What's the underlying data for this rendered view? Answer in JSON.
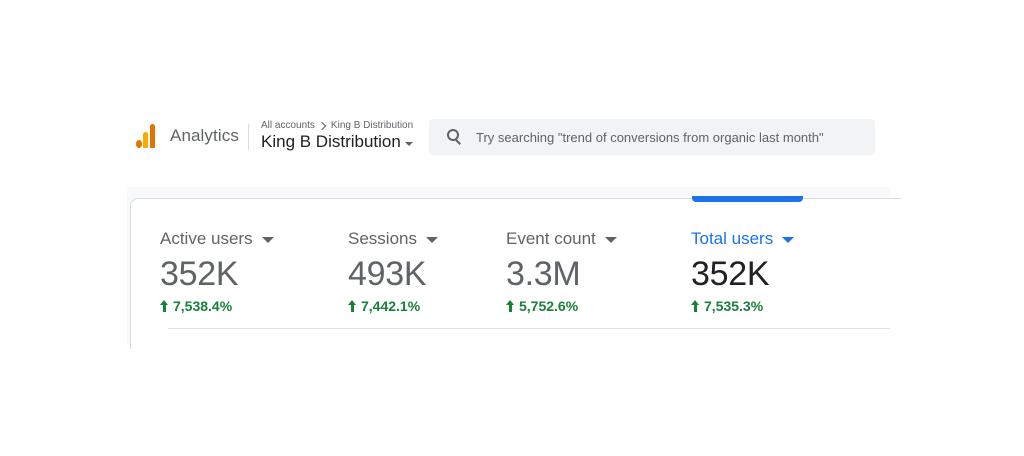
{
  "header": {
    "product_name": "Analytics",
    "breadcrumb": {
      "root": "All accounts",
      "account": "King B Distribution"
    },
    "account_picker": {
      "label": "King B Distribution"
    },
    "search": {
      "placeholder": "Try searching \"trend of conversions from organic last month\"",
      "value": ""
    }
  },
  "metrics": [
    {
      "label": "Active users",
      "value": "352K",
      "change": "7,538.4%",
      "direction": "up",
      "selected": false
    },
    {
      "label": "Sessions",
      "value": "493K",
      "change": "7,442.1%",
      "direction": "up",
      "selected": false
    },
    {
      "label": "Event count",
      "value": "3.3M",
      "change": "5,752.6%",
      "direction": "up",
      "selected": false
    },
    {
      "label": "Total users",
      "value": "352K",
      "change": "7,535.3%",
      "direction": "up",
      "selected": true
    }
  ],
  "colors": {
    "accent": "#1a73e8",
    "positive": "#188038",
    "logo_orange": "#e37400",
    "logo_yellow": "#f9ab00"
  },
  "icons": {
    "logo": "analytics-logo-icon",
    "search": "search-icon",
    "dropdown": "caret-down-icon",
    "trend": "arrow-up-icon"
  }
}
